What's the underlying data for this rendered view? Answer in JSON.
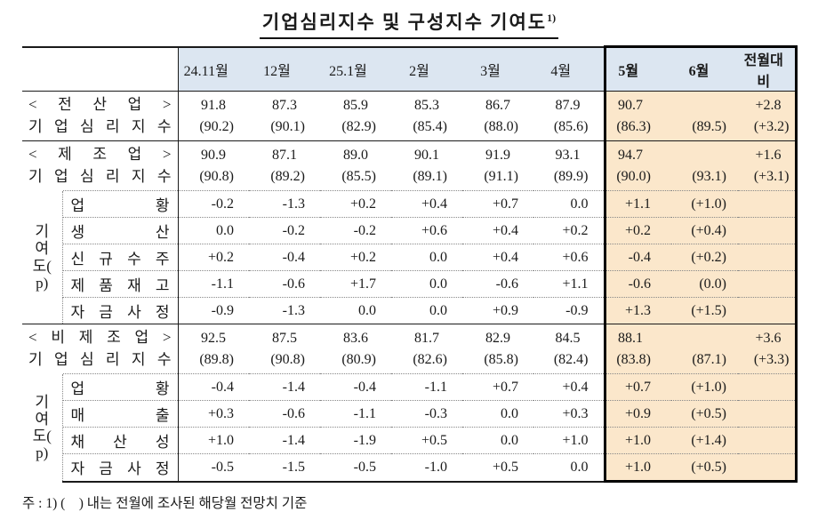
{
  "title": {
    "text": "기업심리지수 및 구성지수 기여도",
    "note_ref": "1)"
  },
  "colors": {
    "header_bg": "#dce6f1",
    "highlight_bg": "#fbe7cb",
    "border": "#1a1a1a"
  },
  "table": {
    "col_headers": [
      "24.11월",
      "12월",
      "25.1월",
      "2월",
      "3월",
      "4월",
      "5월",
      "6월",
      "전월대비"
    ],
    "bold_from_index": 6,
    "sections": [
      {
        "kind": "index",
        "label_top": "< 전 산 업 >",
        "label_bottom": "기 업 심 리 지 수",
        "main": [
          "91.8",
          "87.3",
          "85.9",
          "85.3",
          "86.7",
          "87.9",
          "90.7",
          "",
          "+2.8"
        ],
        "forecast": [
          "(90.2)",
          "(90.1)",
          "(82.9)",
          "(85.4)",
          "(88.0)",
          "(85.6)",
          "(86.3)",
          "(89.5)",
          "(+3.2)"
        ]
      },
      {
        "kind": "index",
        "label_top": "< 제 조 업 >",
        "label_bottom": "기 업 심 리 지 수",
        "main": [
          "90.9",
          "87.1",
          "89.0",
          "90.1",
          "91.9",
          "93.1",
          "94.7",
          "",
          "+1.6"
        ],
        "forecast": [
          "(90.8)",
          "(89.2)",
          "(85.5)",
          "(89.1)",
          "(91.1)",
          "(89.9)",
          "(90.0)",
          "(93.1)",
          "(+3.1)"
        ]
      },
      {
        "kind": "contrib",
        "group_label": [
          "기",
          "여",
          "도(",
          "p)"
        ],
        "rows": [
          {
            "label": "업 황",
            "values": [
              "-0.2",
              "-1.3",
              "+0.2",
              "+0.4",
              "+0.7",
              "0.0",
              "+1.1",
              "(+1.0)",
              ""
            ]
          },
          {
            "label": "생 산",
            "values": [
              "0.0",
              "-0.2",
              "-0.2",
              "+0.6",
              "+0.4",
              "+0.2",
              "+0.2",
              "(+0.4)",
              ""
            ]
          },
          {
            "label": "신 규 수 주",
            "values": [
              "+0.2",
              "-0.4",
              "+0.2",
              "0.0",
              "+0.4",
              "+0.6",
              "-0.4",
              "(+0.2)",
              ""
            ]
          },
          {
            "label": "제 품 재 고",
            "values": [
              "-1.1",
              "-0.6",
              "+1.7",
              "0.0",
              "-0.6",
              "+1.1",
              "-0.6",
              "(0.0)",
              ""
            ]
          },
          {
            "label": "자 금 사 정",
            "values": [
              "-0.9",
              "-1.3",
              "0.0",
              "0.0",
              "+0.9",
              "-0.9",
              "+1.3",
              "(+1.5)",
              ""
            ]
          }
        ]
      },
      {
        "kind": "index",
        "label_top": "< 비 제 조 업 >",
        "label_bottom": "기 업 심 리 지 수",
        "main": [
          "92.5",
          "87.5",
          "83.6",
          "81.7",
          "82.9",
          "84.5",
          "88.1",
          "",
          "+3.6"
        ],
        "forecast": [
          "(89.8)",
          "(90.8)",
          "(80.9)",
          "(82.6)",
          "(85.8)",
          "(82.4)",
          "(83.8)",
          "(87.1)",
          "(+3.3)"
        ]
      },
      {
        "kind": "contrib",
        "group_label": [
          "기",
          "여",
          "도(",
          "p)"
        ],
        "rows": [
          {
            "label": "업 황",
            "values": [
              "-0.4",
              "-1.4",
              "-0.4",
              "-1.1",
              "+0.7",
              "+0.4",
              "+0.7",
              "(+1.0)",
              ""
            ]
          },
          {
            "label": "매 출",
            "values": [
              "+0.3",
              "-0.6",
              "-1.1",
              "-0.3",
              "0.0",
              "+0.3",
              "+0.9",
              "(+0.5)",
              ""
            ]
          },
          {
            "label": "채 산 성",
            "values": [
              "+1.0",
              "-1.4",
              "-1.9",
              "+0.5",
              "0.0",
              "+1.0",
              "+1.0",
              "(+1.4)",
              ""
            ]
          },
          {
            "label": "자 금 사 정",
            "values": [
              "-0.5",
              "-1.5",
              "-0.5",
              "-1.0",
              "+0.5",
              "0.0",
              "+1.0",
              "(+0.5)",
              ""
            ]
          }
        ]
      }
    ]
  },
  "footnote": "주 : 1) (    ) 내는 전월에 조사된 해당월 전망치 기준"
}
